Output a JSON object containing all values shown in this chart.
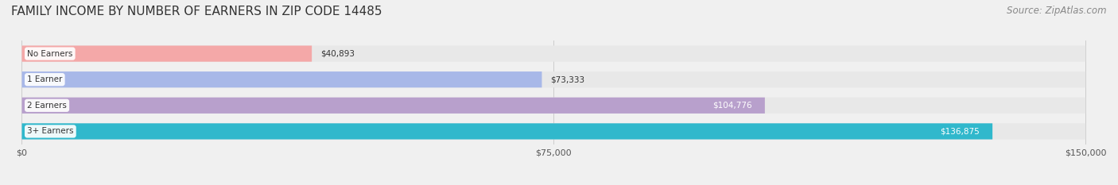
{
  "title": "FAMILY INCOME BY NUMBER OF EARNERS IN ZIP CODE 14485",
  "source": "Source: ZipAtlas.com",
  "categories": [
    "No Earners",
    "1 Earner",
    "2 Earners",
    "3+ Earners"
  ],
  "values": [
    40893,
    73333,
    104776,
    136875
  ],
  "bar_colors": [
    "#f4a8a8",
    "#a8b8e8",
    "#b8a0cc",
    "#30b8cc"
  ],
  "label_colors": [
    "#555555",
    "#555555",
    "#ffffff",
    "#ffffff"
  ],
  "max_value": 150000,
  "xticks": [
    0,
    75000,
    150000
  ],
  "xtick_labels": [
    "$0",
    "$75,000",
    "$150,000"
  ],
  "background_color": "#f0f0f0",
  "bar_background_color": "#e8e8e8",
  "title_fontsize": 11,
  "source_fontsize": 8.5
}
